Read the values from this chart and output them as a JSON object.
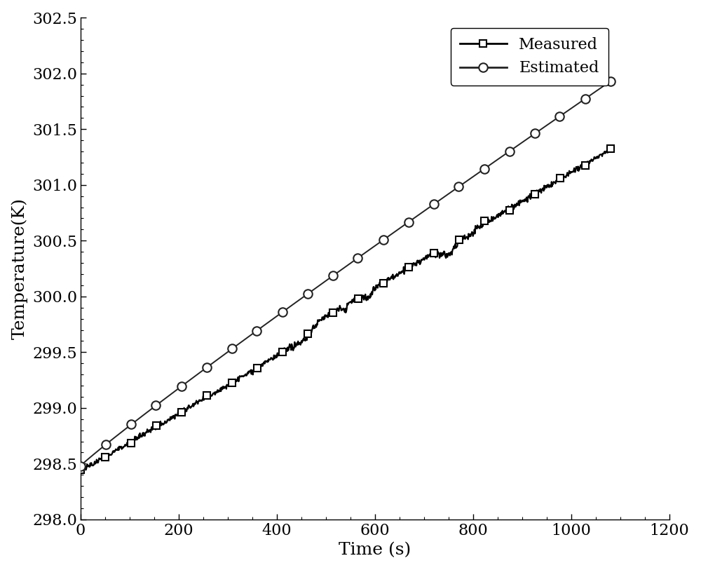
{
  "title": "",
  "xlabel": "Time (s)",
  "ylabel": "Temperature(K)",
  "xlim": [
    0,
    1200
  ],
  "ylim": [
    298.0,
    302.5
  ],
  "xticks": [
    0,
    200,
    400,
    600,
    800,
    1000,
    1200
  ],
  "yticks": [
    298.0,
    298.5,
    299.0,
    299.5,
    300.0,
    300.5,
    301.0,
    301.5,
    302.0,
    302.5
  ],
  "measured_color": "#000000",
  "estimated_color": "#222222",
  "background_color": "#ffffff",
  "measured_label": "Measured",
  "estimated_label": "Estimated",
  "t_end": 1080,
  "measured_start": 298.48,
  "measured_end": 301.27,
  "estimated_start": 298.48,
  "estimated_end": 301.93,
  "linewidth_measured": 1.6,
  "linewidth_estimated": 1.4,
  "marker_size_measured": 7,
  "marker_size_estimated": 9,
  "xlabel_fontsize": 18,
  "ylabel_fontsize": 18,
  "tick_fontsize": 16,
  "legend_fontsize": 16,
  "num_measured_markers": 22,
  "num_estimated_markers": 22
}
